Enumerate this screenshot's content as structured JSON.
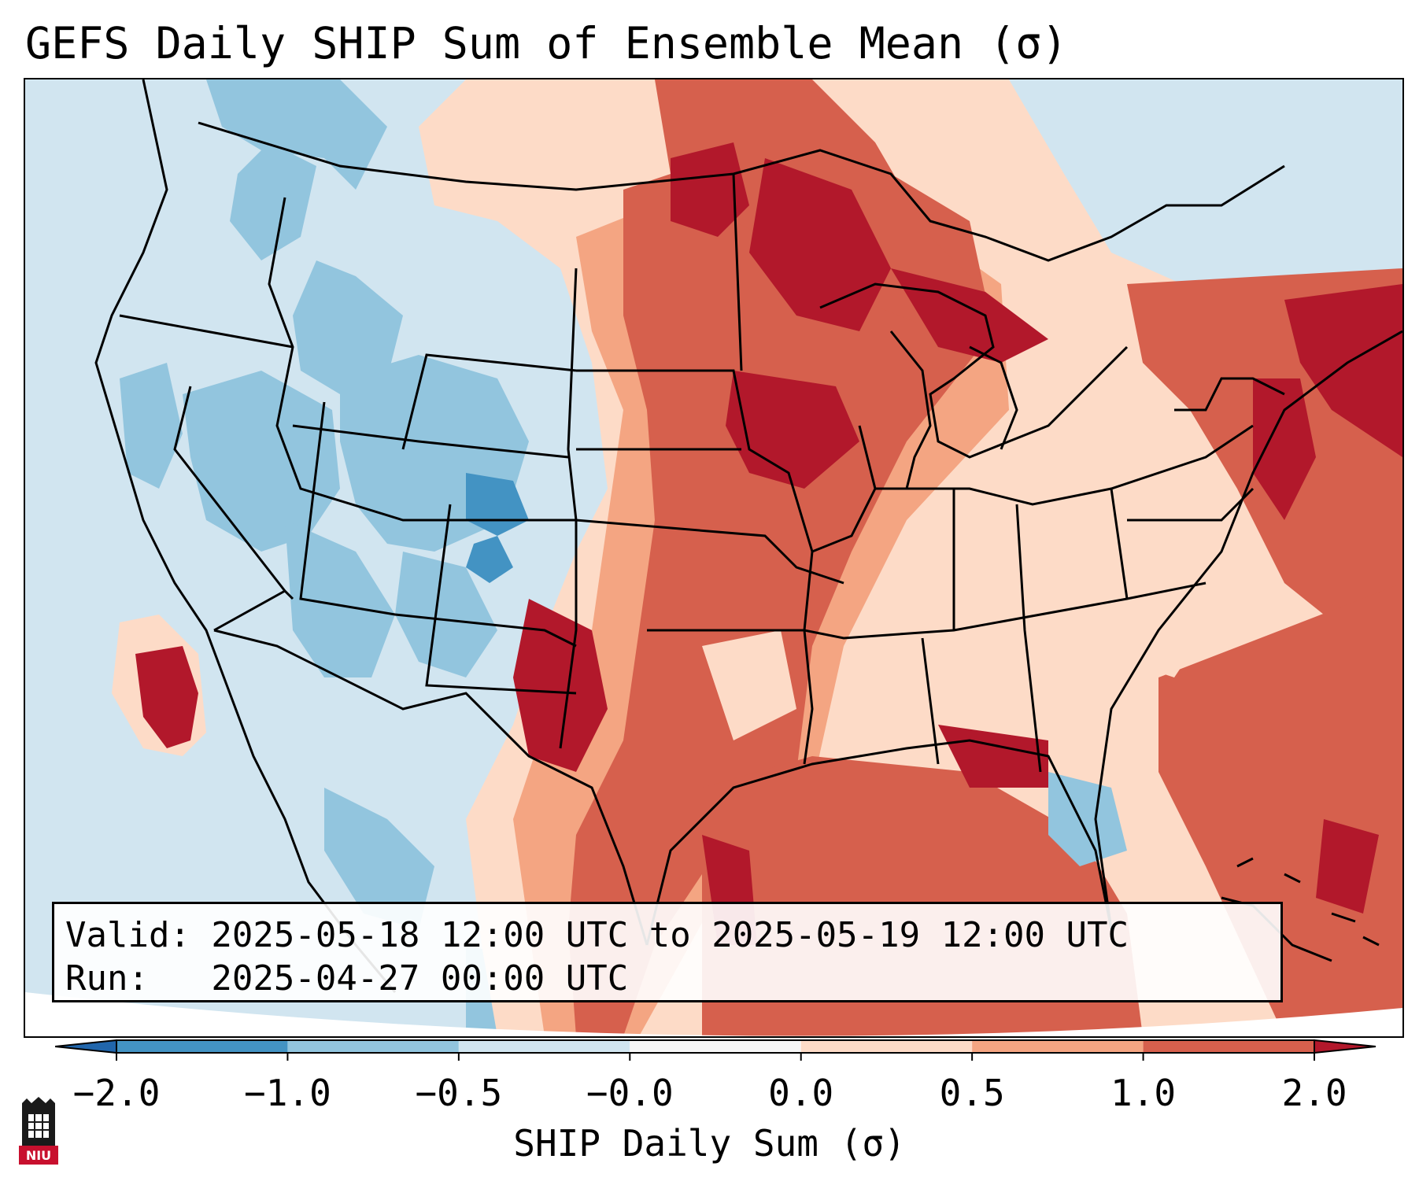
{
  "title": "GEFS Daily SHIP Sum of Ensemble Mean (σ)",
  "info": {
    "valid_line": "Valid: 2025-05-18 12:00 UTC to 2025-05-19 12:00 UTC",
    "run_line": "Run:   2025-04-27 00:00 UTC"
  },
  "colorbar": {
    "label": "SHIP Daily Sum (σ)",
    "ticks": [
      "−2.0",
      "−1.0",
      "−0.5",
      "−0.0",
      "0.0",
      "0.5",
      "1.0",
      "2.0"
    ],
    "bin_colors": [
      "#4393c3",
      "#92c5de",
      "#d1e5f0",
      "#f7f7f7",
      "#fddbc7",
      "#f4a582",
      "#d6604d"
    ],
    "under_color": "#2166ac",
    "over_color": "#b2182b",
    "extend": "both"
  },
  "logo": {
    "text": "NIU",
    "name": "niu-logo"
  },
  "palette": {
    "ocean_neutral": "#d1e5f0",
    "light_blue": "#92c5de",
    "medium_blue": "#4393c3",
    "light_red": "#fddbc7",
    "medium_red": "#f4a582",
    "red": "#d6604d",
    "dark_red": "#b2182b",
    "border_color": "#000000"
  }
}
